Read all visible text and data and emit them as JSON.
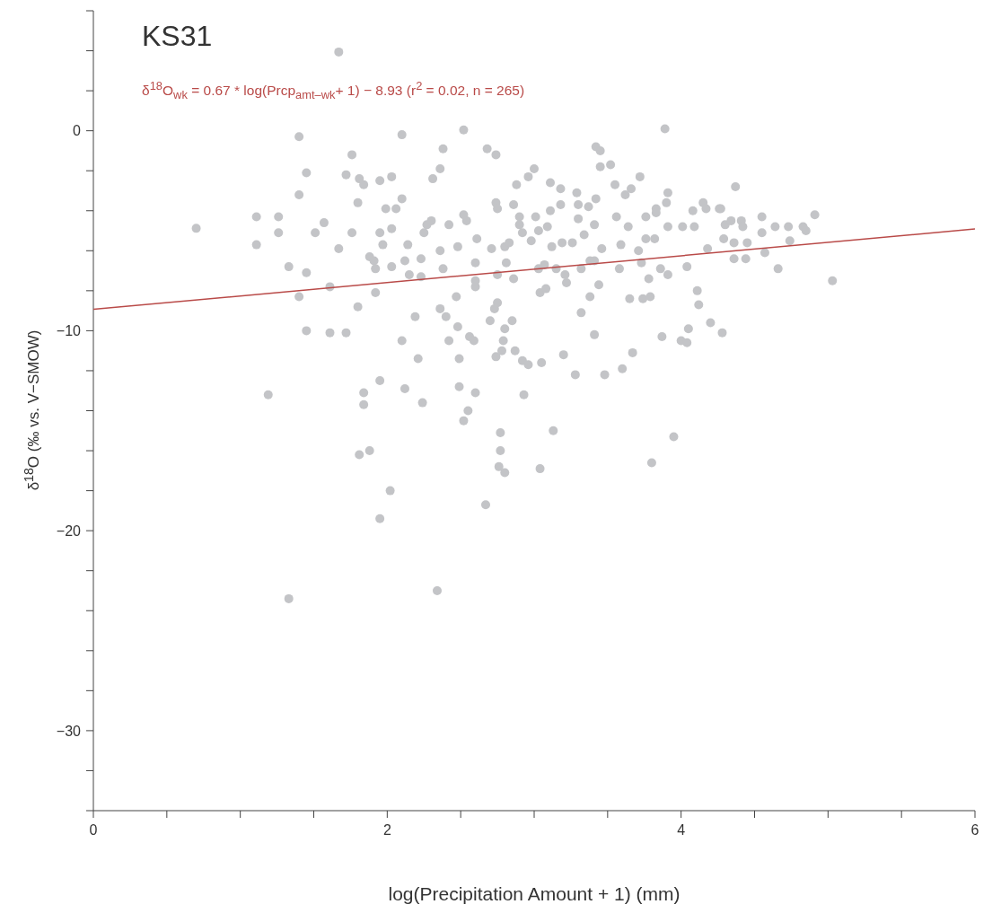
{
  "chart_data": {
    "type": "scatter",
    "title": "KS31",
    "annotations": [
      "δ$^{18}$O$_{wk}$ = 0.67 * log(Prcp$_{amt–wk}$+ 1) − 8.93 (r$^{2}$ = 0.02, n = 265)"
    ],
    "xlabel": "log(Precipitation Amount + 1) (mm)",
    "ylabel": "δ$^{18}$O (‰ vs. V−SMOW)",
    "xlim": [
      0,
      6
    ],
    "xticks": [
      0,
      {
        "value": 0.5,
        "label": null
      },
      {
        "value": 1,
        "label": null
      },
      {
        "value": 1.5,
        "label": null
      },
      2,
      {
        "value": 2.5,
        "label": null
      },
      {
        "value": 3,
        "label": null
      },
      {
        "value": 3.5,
        "label": null
      },
      4,
      {
        "value": 4.5,
        "label": null
      },
      {
        "value": 5,
        "label": null
      },
      {
        "value": 5.5,
        "label": null
      },
      6
    ],
    "ylim": [
      -34,
      6
    ],
    "yticks": [
      {
        "value": -34,
        "label": null
      },
      {
        "value": -32,
        "label": null
      },
      -30,
      {
        "value": -28,
        "label": null
      },
      {
        "value": -26,
        "label": null
      },
      {
        "value": -24,
        "label": null
      },
      {
        "value": -22,
        "label": null
      },
      -20,
      {
        "value": -18,
        "label": null
      },
      {
        "value": -16,
        "label": null
      },
      {
        "value": -14,
        "label": null
      },
      {
        "value": -12,
        "label": null
      },
      -10,
      {
        "value": -8,
        "label": null
      },
      {
        "value": -6,
        "label": null
      },
      {
        "value": -4,
        "label": null
      },
      {
        "value": -2,
        "label": null
      },
      0,
      {
        "value": 2,
        "label": null
      },
      {
        "value": 4,
        "label": null
      },
      {
        "value": 6,
        "label": null
      }
    ],
    "grid": false,
    "marker": "circle",
    "series": [
      {
        "color": "#c3c4c7",
        "x": [
          1.67,
          0.7,
          1.11,
          1.11,
          1.26,
          1.26,
          1.33,
          1.19,
          1.4,
          1.4,
          1.4,
          1.45,
          1.45,
          1.45,
          1.51,
          1.57,
          1.61,
          1.61,
          1.67,
          1.72,
          1.72,
          1.76,
          1.76,
          1.8,
          1.8,
          1.81,
          1.84,
          1.84,
          1.84,
          1.81,
          1.88,
          1.88,
          1.91,
          1.92,
          1.92,
          1.95,
          1.95,
          1.97,
          1.95,
          1.95,
          1.99,
          2.03,
          2.03,
          2.03,
          2.02,
          2.06,
          2.1,
          2.1,
          2.1,
          2.12,
          2.14,
          2.12,
          2.15,
          2.19,
          2.21,
          2.23,
          2.23,
          2.25,
          2.24,
          2.27,
          2.3,
          2.31,
          2.36,
          2.38,
          2.36,
          2.36,
          2.38,
          2.4,
          2.42,
          2.42,
          2.48,
          2.47,
          2.48,
          2.49,
          2.49,
          2.52,
          2.52,
          2.52,
          2.55,
          2.54,
          2.56,
          2.59,
          2.6,
          2.6,
          2.6,
          2.61,
          2.6,
          2.68,
          2.71,
          2.7,
          2.74,
          2.74,
          2.75,
          2.75,
          2.73,
          2.75,
          2.74,
          2.77,
          2.77,
          2.76,
          2.8,
          2.8,
          2.79,
          2.78,
          2.8,
          2.83,
          2.81,
          2.86,
          2.86,
          2.88,
          2.9,
          2.85,
          2.87,
          2.9,
          2.92,
          2.92,
          2.93,
          2.96,
          2.98,
          2.96,
          3.0,
          3.01,
          3.03,
          3.03,
          3.04,
          3.05,
          3.04,
          3.07,
          3.08,
          3.09,
          3.11,
          3.12,
          3.11,
          3.13,
          3.15,
          3.18,
          3.18,
          3.19,
          3.2,
          3.21,
          3.22,
          3.26,
          3.29,
          3.28,
          3.3,
          3.3,
          3.32,
          3.32,
          3.34,
          3.37,
          3.38,
          3.38,
          3.41,
          3.41,
          3.41,
          3.42,
          3.42,
          3.45,
          3.45,
          3.44,
          3.46,
          3.48,
          3.52,
          3.55,
          3.56,
          3.58,
          3.59,
          3.6,
          3.62,
          3.64,
          3.65,
          3.67,
          3.66,
          3.71,
          3.73,
          3.72,
          3.74,
          3.76,
          3.76,
          3.78,
          3.79,
          3.8,
          3.82,
          3.83,
          3.83,
          3.86,
          3.87,
          3.89,
          3.9,
          3.91,
          3.91,
          3.91,
          3.95,
          4.0,
          4.01,
          4.04,
          4.05,
          4.04,
          4.08,
          4.09,
          4.11,
          4.12,
          4.15,
          4.17,
          4.18,
          4.2,
          4.26,
          4.27,
          4.3,
          4.29,
          4.28,
          4.34,
          4.36,
          4.36,
          4.37,
          4.41,
          4.42,
          4.44,
          4.45,
          4.55,
          4.55,
          4.57,
          4.64,
          4.66,
          4.73,
          4.74,
          4.83,
          4.85,
          4.91,
          5.03,
          1.33,
          2.34,
          2.67
        ],
        "values": [
          3.94,
          -4.88,
          -4.3,
          -5.7,
          -4.3,
          -5.1,
          -6.8,
          -13.2,
          -0.3,
          -3.2,
          -8.3,
          -2.1,
          -7.1,
          -10.0,
          -5.1,
          -4.6,
          -7.8,
          -10.1,
          -5.9,
          -2.2,
          -10.1,
          -1.2,
          -5.1,
          -3.6,
          -8.8,
          -2.4,
          -2.7,
          -13.1,
          -13.7,
          -16.2,
          -16.0,
          -6.3,
          -6.5,
          -6.9,
          -8.1,
          -5.1,
          -2.5,
          -5.7,
          -12.5,
          -19.4,
          -3.9,
          -2.3,
          -4.9,
          -6.8,
          -18.0,
          -3.9,
          -0.2,
          -3.4,
          -10.5,
          -12.9,
          -5.7,
          -6.5,
          -7.2,
          -9.3,
          -11.4,
          -6.4,
          -7.3,
          -5.1,
          -13.6,
          -4.7,
          -4.5,
          -2.4,
          -1.9,
          -0.9,
          -6.0,
          -8.9,
          -6.9,
          -9.3,
          -10.5,
          -4.7,
          -9.8,
          -8.3,
          -5.8,
          -11.4,
          -12.8,
          0.04,
          -4.2,
          -14.5,
          -14.0,
          -4.5,
          -10.3,
          -10.5,
          -13.1,
          -7.8,
          -7.5,
          -5.4,
          -6.6,
          -0.9,
          -5.9,
          -9.5,
          -1.2,
          -3.6,
          -3.9,
          -7.2,
          -8.9,
          -8.6,
          -11.3,
          -15.1,
          -16.0,
          -16.8,
          -17.1,
          -9.9,
          -10.5,
          -11.0,
          -5.8,
          -5.6,
          -6.6,
          -3.7,
          -7.4,
          -2.7,
          -4.3,
          -9.5,
          -11.0,
          -4.7,
          -5.1,
          -11.5,
          -13.2,
          -11.7,
          -5.5,
          -2.3,
          -1.9,
          -4.3,
          -5.0,
          -6.9,
          -8.1,
          -11.6,
          -16.9,
          -6.7,
          -7.9,
          -4.8,
          -2.6,
          -5.8,
          -4.0,
          -15.0,
          -6.9,
          -3.7,
          -2.9,
          -5.6,
          -11.2,
          -7.2,
          -7.6,
          -5.6,
          -3.1,
          -12.2,
          -3.7,
          -4.4,
          -9.1,
          -6.9,
          -5.2,
          -3.8,
          -6.5,
          -8.3,
          -6.5,
          -4.7,
          -10.2,
          -3.4,
          -0.8,
          -1.0,
          -1.8,
          -7.7,
          -5.9,
          -12.2,
          -1.7,
          -2.7,
          -4.3,
          -6.9,
          -5.7,
          -11.9,
          -3.2,
          -4.8,
          -8.4,
          -11.1,
          -2.9,
          -6.0,
          -6.6,
          -2.3,
          -8.4,
          -4.3,
          -5.4,
          -7.4,
          -8.3,
          -16.6,
          -5.4,
          -3.9,
          -4.1,
          -6.9,
          -10.3,
          0.1,
          -3.6,
          -4.8,
          -3.1,
          -7.2,
          -15.3,
          -10.5,
          -4.8,
          -10.6,
          -9.9,
          -6.8,
          -4.0,
          -4.8,
          -8.0,
          -8.7,
          -3.6,
          -3.9,
          -5.9,
          -9.6,
          -3.9,
          -3.9,
          -4.7,
          -5.4,
          -10.1,
          -4.5,
          -5.6,
          -6.4,
          -2.8,
          -4.5,
          -4.8,
          -6.4,
          -5.6,
          -4.3,
          -5.1,
          -6.1,
          -4.8,
          -6.9,
          -4.8,
          -5.5,
          -4.8,
          -5.0,
          -4.2,
          -7.5,
          -23.4,
          -23.0,
          -18.7
        ]
      },
      {
        "type": "line",
        "marker": "none",
        "color": "#b94a48",
        "x": [
          0,
          6
        ],
        "values": [
          -8.93,
          -4.91
        ]
      }
    ]
  }
}
